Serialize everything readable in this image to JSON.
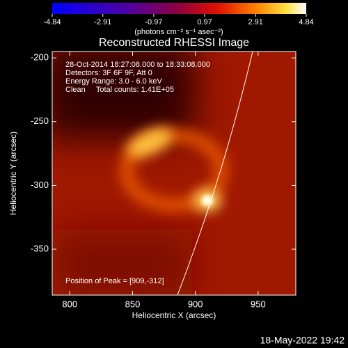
{
  "chart_data": {
    "type": "image",
    "title": "Reconstructed RHESSI Image",
    "colorbar": {
      "label": "(photons cm⁻² s⁻¹ asec⁻²)",
      "lim": [
        -4.84,
        4.84
      ],
      "ticks": [
        -4.84,
        -2.91,
        -0.97,
        0.97,
        2.91,
        4.84
      ]
    },
    "x_label": "Heliocentric X (arcsec)",
    "y_label": "Heliocentric Y (arcsec)",
    "xlim": [
      786,
      980
    ],
    "xticks": [
      800,
      850,
      900,
      950
    ],
    "ylim": [
      -386,
      -195
    ],
    "yticks": [
      -200,
      -250,
      -300,
      -350
    ],
    "annotations": [
      "28-Oct-2014 18:27:08.000 to 18:33:08.000",
      "Detectors: 3F 6F 9F, Att 0",
      "Energy Range: 3.0 - 6.0 keV",
      "Clean     Total counts: 1.41E+05",
      "Position of Peak = [909,-312]"
    ],
    "footer": "18-May-2022 19:42"
  }
}
